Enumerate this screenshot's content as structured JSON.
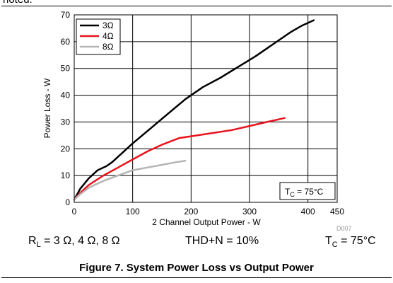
{
  "page": {
    "top_fragment": "noted.",
    "caption": "Figure 7. System Power Loss vs Output Power",
    "conditions": {
      "rl_label": "R",
      "rl_sub": "L",
      "rl_values": " = 3 Ω, 4 Ω, 8 Ω",
      "thd": "THD+N = 10%",
      "tc_label": "T",
      "tc_sub": "C",
      "tc_value": " = 75°C"
    }
  },
  "chart_data": {
    "type": "line",
    "xlabel": "2 Channel Output Power - W",
    "ylabel": "Power Loss - W",
    "xlim": [
      0,
      450
    ],
    "ylim": [
      0,
      70
    ],
    "xticks": [
      0,
      100,
      200,
      300,
      400,
      450
    ],
    "yticks": [
      0,
      10,
      20,
      30,
      40,
      50,
      60,
      70
    ],
    "grid": true,
    "legend_placement": "top-left",
    "annotation": {
      "label": "T",
      "sub": "C",
      "value": " = 75°C"
    },
    "watermark": "D007",
    "series": [
      {
        "name": "3Ω",
        "color": "#000000",
        "x": [
          0,
          10,
          25,
          40,
          55,
          65,
          75,
          100,
          130,
          160,
          190,
          220,
          250,
          280,
          310,
          340,
          370,
          390,
          410
        ],
        "y": [
          1,
          5,
          9,
          12,
          13.5,
          15,
          17,
          22,
          27.5,
          33,
          38.5,
          43,
          46.5,
          50.5,
          54.5,
          59,
          63.5,
          66,
          68
        ]
      },
      {
        "name": "4Ω",
        "color": "#e8141e",
        "x": [
          0,
          10,
          25,
          50,
          75,
          100,
          125,
          150,
          180,
          210,
          240,
          270,
          300,
          330,
          360
        ],
        "y": [
          1,
          3.5,
          6.5,
          10,
          13,
          16,
          19,
          21.5,
          24,
          25,
          26,
          27,
          28.5,
          30,
          31.5
        ]
      },
      {
        "name": "8Ω",
        "color": "#b4b4b4",
        "x": [
          0,
          10,
          25,
          50,
          75,
          100,
          125,
          150,
          175,
          190
        ],
        "y": [
          1,
          3,
          5.5,
          8,
          10,
          12,
          13,
          14,
          15,
          15.5
        ]
      }
    ]
  }
}
